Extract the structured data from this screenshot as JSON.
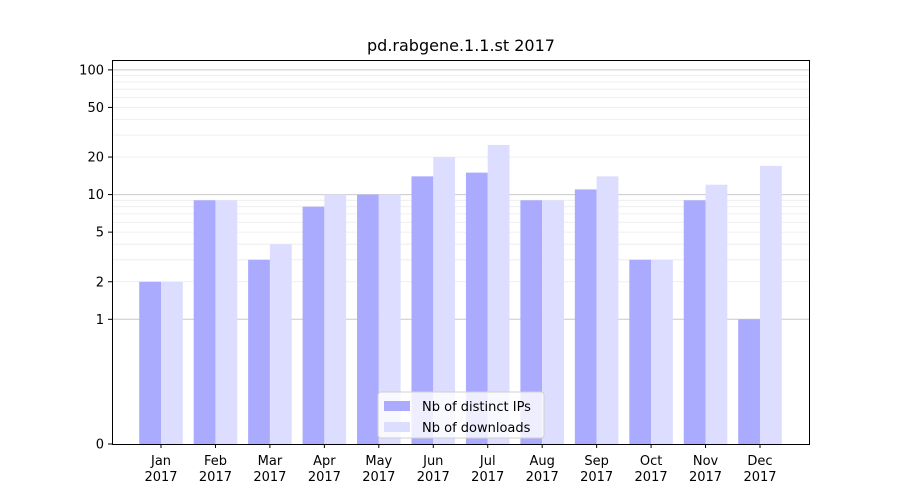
{
  "chart_data": {
    "type": "bar",
    "title": "pd.rabgene.1.1.st 2017",
    "xlabel": "",
    "ylabel": "",
    "yscale": "symlog",
    "ylim": [
      0,
      120
    ],
    "yticks": [
      0,
      1,
      2,
      5,
      10,
      20,
      50,
      100
    ],
    "ytick_labels": [
      "0",
      "1",
      "2",
      "5",
      "10",
      "20",
      "50",
      "100"
    ],
    "categories": [
      "Jan\n2017",
      "Feb\n2017",
      "Mar\n2017",
      "Apr\n2017",
      "May\n2017",
      "Jun\n2017",
      "Jul\n2017",
      "Aug\n2017",
      "Sep\n2017",
      "Oct\n2017",
      "Nov\n2017",
      "Dec\n2017"
    ],
    "series": [
      {
        "name": "Nb of distinct IPs",
        "color": "#aaaaff",
        "values": [
          2,
          9,
          3,
          8,
          10,
          14,
          15,
          9,
          11,
          3,
          9,
          1
        ]
      },
      {
        "name": "Nb of downloads",
        "color": "#ddddff",
        "values": [
          2,
          9,
          4,
          10,
          10,
          20,
          25,
          9,
          14,
          3,
          12,
          17
        ]
      }
    ],
    "legend": "bottom-center",
    "grid": "horizontal"
  }
}
